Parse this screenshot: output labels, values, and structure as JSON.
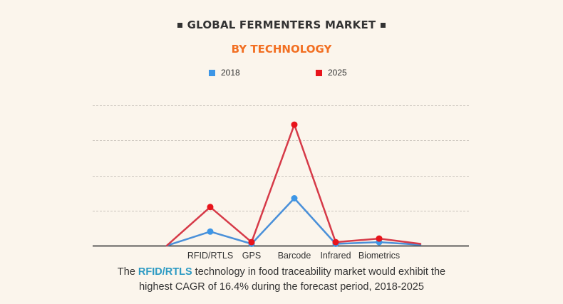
{
  "header": {
    "title": "GLOBAL FERMENTERS MARKET",
    "subtitle": "BY TECHNOLOGY"
  },
  "legend": [
    {
      "label": "2018",
      "color": "#3d96e6"
    },
    {
      "label": "2025",
      "color": "#e8141b"
    }
  ],
  "caption": {
    "before": "The ",
    "highlight": "RFID/RTLS",
    "after_line1": " technology in food traceability market would exhibit the",
    "line2": "highest CAGR of 16.4% during the forecast period, 2018-2025"
  },
  "chart_data": {
    "type": "line",
    "title": "GLOBAL FERMENTERS MARKET",
    "subtitle": "BY TECHNOLOGY",
    "categories": [
      "",
      "RFID/RTLS",
      "GPS",
      "Barcode",
      "Infrared",
      "Biometrics",
      ""
    ],
    "series": [
      {
        "name": "2018",
        "color": "#3d96e6",
        "line_color": "#4a90d9",
        "values": [
          0,
          0.8,
          0.1,
          2.7,
          0.1,
          0.2,
          0.05
        ],
        "markers": [
          false,
          true,
          true,
          true,
          true,
          true,
          false
        ]
      },
      {
        "name": "2025",
        "color": "#e8141b",
        "line_color": "#d63a48",
        "values": [
          0,
          2.2,
          0.2,
          6.9,
          0.2,
          0.4,
          0.1
        ],
        "markers": [
          false,
          true,
          true,
          true,
          true,
          true,
          false
        ]
      }
    ],
    "ylim": [
      0,
      8
    ],
    "grid": true,
    "grid_style": "dashed",
    "axis_labels_shown": false,
    "xlabel": "",
    "ylabel": "",
    "legend_position": "top"
  }
}
